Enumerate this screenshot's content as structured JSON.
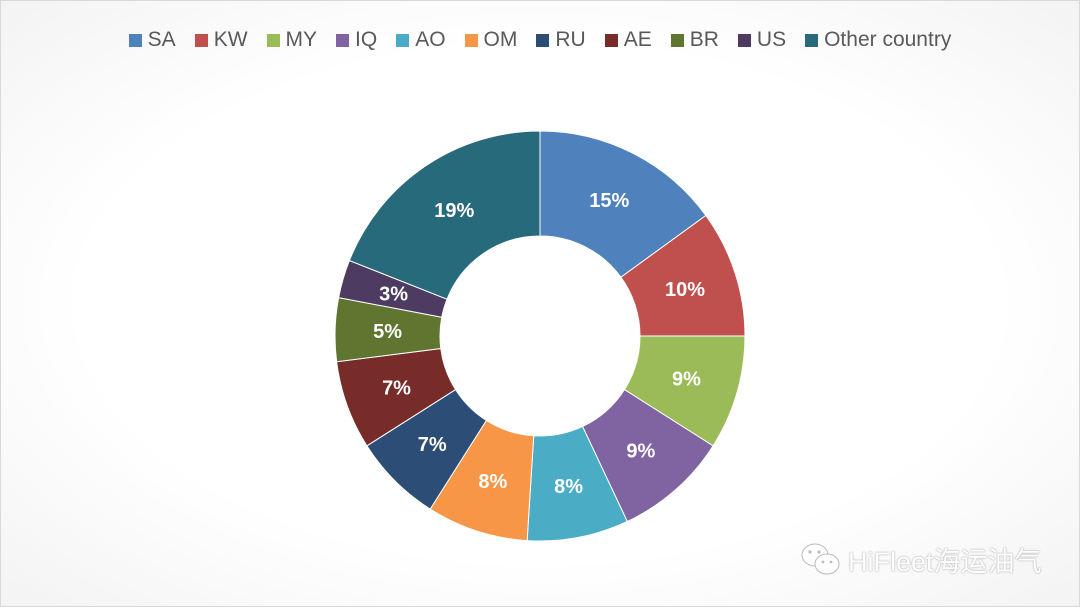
{
  "chart_data": {
    "type": "pie",
    "variant": "donut",
    "legend_position": "top",
    "categories": [
      "SA",
      "KW",
      "MY",
      "IQ",
      "AO",
      "OM",
      "RU",
      "AE",
      "BR",
      "US",
      "Other country"
    ],
    "values": [
      15,
      10,
      9,
      9,
      8,
      8,
      7,
      7,
      5,
      3,
      19
    ],
    "data_labels": [
      "15%",
      "10%",
      "9%",
      "9%",
      "8%",
      "8%",
      "7%",
      "7%",
      "5%",
      "3%",
      "19%"
    ],
    "colors": [
      "#4f81bd",
      "#c0504d",
      "#9bbb59",
      "#8064a2",
      "#4bacc6",
      "#f79646",
      "#2c4d75",
      "#772c2a",
      "#5f7530",
      "#4d3b62",
      "#276a7c"
    ]
  },
  "watermark": {
    "text": "HiFleet海运油气",
    "icon": "wechat-icon"
  }
}
